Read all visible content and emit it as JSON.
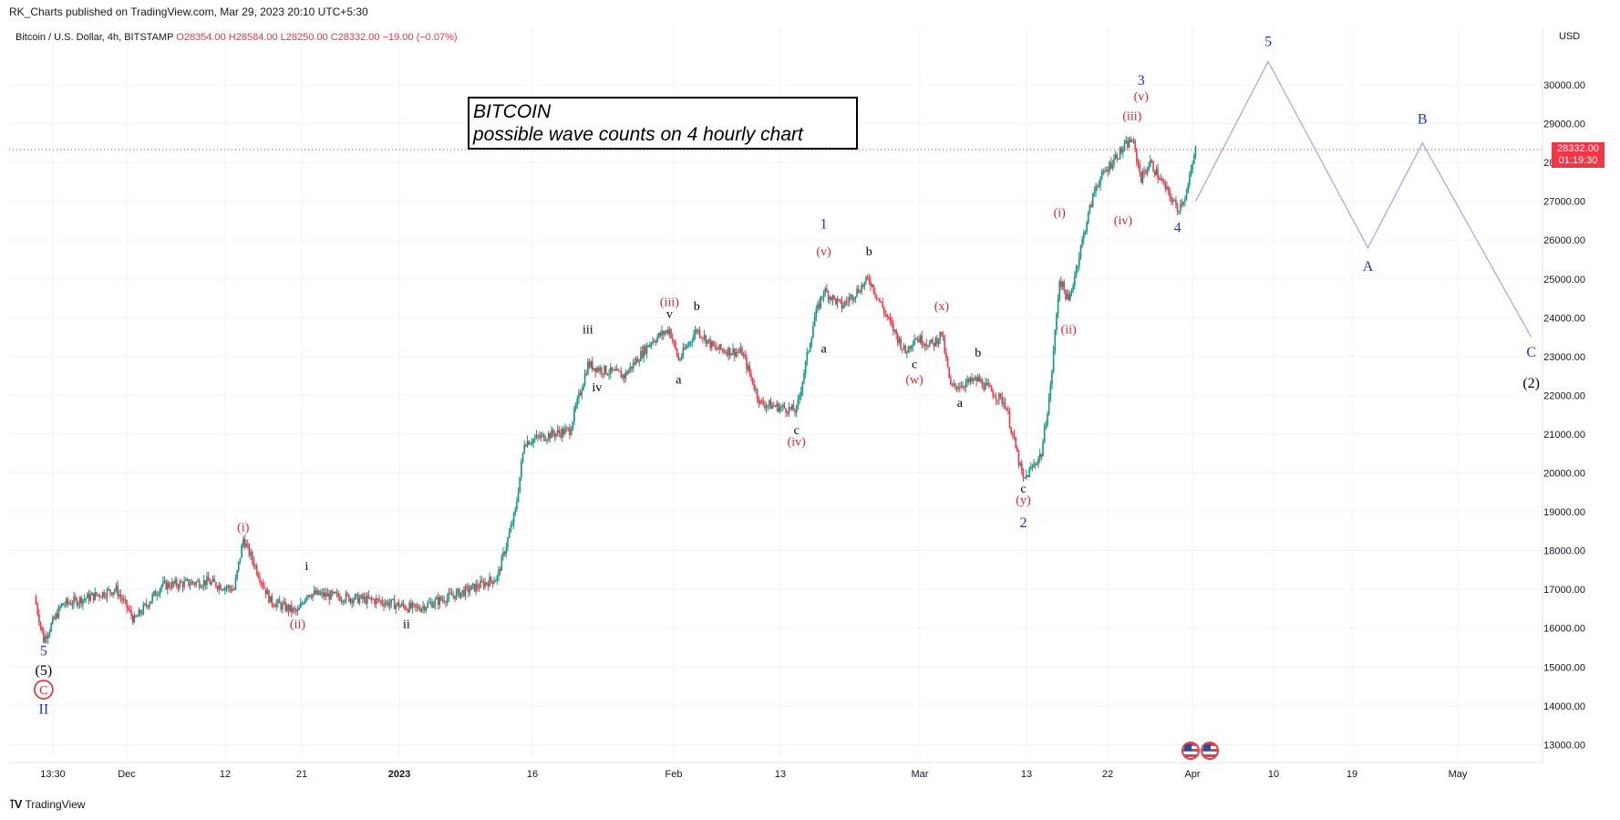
{
  "attribution": "RK_Charts published on TradingView.com, Mar 29, 2023 20:10 UTC+5:30",
  "symbol": {
    "name": "Bitcoin / U.S. Dollar, 4h, BITSTAMP",
    "ohlc": "O28354.00 H28584.00 L28250.00 C28332.00 −19.00 (−0.07%)"
  },
  "currency": "USD",
  "title_box": {
    "line1": "BITCOIN",
    "line2": "possible wave counts on 4 hourly chart"
  },
  "last_price": {
    "value": "28332.00",
    "countdown": "01:19:30"
  },
  "footer": {
    "brand": "TradingView"
  },
  "colors": {
    "up": "#089981",
    "down": "#f23645",
    "wave_blue": "#1a33cc",
    "wave_red": "#e61e28",
    "projection": "#a9a9f0",
    "grid": "#f0f3fa"
  },
  "icons": [
    "us-flag-icon",
    "us-flag-icon"
  ],
  "chart_data": {
    "type": "candlestick",
    "timeframe": "4h",
    "x_ticks": [
      "13:30",
      "Dec",
      "12",
      "21",
      "2023",
      "16",
      "Feb",
      "13",
      "Mar",
      "13",
      "22",
      "Apr",
      "10",
      "19",
      "May"
    ],
    "y_ticks": [
      13000,
      14000,
      15000,
      16000,
      17000,
      18000,
      19000,
      20000,
      21000,
      22000,
      23000,
      24000,
      25000,
      26000,
      27000,
      28000,
      29000,
      30000
    ],
    "ylim": [
      12500,
      31200
    ],
    "last_close": 28332,
    "price_path": [
      {
        "date": "Nov 21",
        "price": 16800
      },
      {
        "date": "Nov 22",
        "price": 15700
      },
      {
        "date": "Nov 24",
        "price": 16600
      },
      {
        "date": "Nov 30",
        "price": 17000
      },
      {
        "date": "Dec 2",
        "price": 16200
      },
      {
        "date": "Dec 5",
        "price": 17100
      },
      {
        "date": "Dec 10",
        "price": 17200
      },
      {
        "date": "Dec 13",
        "price": 17000
      },
      {
        "date": "Dec 14",
        "price": 18300
      },
      {
        "date": "Dec 17",
        "price": 16700
      },
      {
        "date": "Dec 20",
        "price": 16400
      },
      {
        "date": "Dec 21",
        "price": 16900
      },
      {
        "date": "Dec 29",
        "price": 16700
      },
      {
        "date": "Jan 2",
        "price": 16500
      },
      {
        "date": "Jan 8",
        "price": 17000
      },
      {
        "date": "Jan 11",
        "price": 17300
      },
      {
        "date": "Jan 13",
        "price": 19000
      },
      {
        "date": "Jan 14",
        "price": 20800
      },
      {
        "date": "Jan 17",
        "price": 21000
      },
      {
        "date": "Jan 19",
        "price": 21100
      },
      {
        "date": "Jan 21",
        "price": 22800
      },
      {
        "date": "Jan 22",
        "price": 22700
      },
      {
        "date": "Jan 25",
        "price": 22500
      },
      {
        "date": "Jan 28",
        "price": 23400
      },
      {
        "date": "Jan 30",
        "price": 23700
      },
      {
        "date": "Jan 31",
        "price": 22900
      },
      {
        "date": "Feb 2",
        "price": 23700
      },
      {
        "date": "Feb 4",
        "price": 23200
      },
      {
        "date": "Feb 7",
        "price": 23100
      },
      {
        "date": "Feb 9",
        "price": 21800
      },
      {
        "date": "Feb 13",
        "price": 21600
      },
      {
        "date": "Feb 15",
        "price": 24000
      },
      {
        "date": "Feb 16",
        "price": 24700
      },
      {
        "date": "Feb 18",
        "price": 24300
      },
      {
        "date": "Feb 21",
        "price": 25000
      },
      {
        "date": "Feb 23",
        "price": 24000
      },
      {
        "date": "Feb 25",
        "price": 23100
      },
      {
        "date": "Feb 26",
        "price": 23500
      },
      {
        "date": "Feb 28",
        "price": 23300
      },
      {
        "date": "Mar 1",
        "price": 23600
      },
      {
        "date": "Mar 2",
        "price": 22200
      },
      {
        "date": "Mar 5",
        "price": 22400
      },
      {
        "date": "Mar 8",
        "price": 21800
      },
      {
        "date": "Mar 10",
        "price": 19800
      },
      {
        "date": "Mar 12",
        "price": 20500
      },
      {
        "date": "Mar 13",
        "price": 22200
      },
      {
        "date": "Mar 14",
        "price": 25000
      },
      {
        "date": "Mar 15",
        "price": 24400
      },
      {
        "date": "Mar 17",
        "price": 26500
      },
      {
        "date": "Mar 18",
        "price": 27400
      },
      {
        "date": "Mar 20",
        "price": 28100
      },
      {
        "date": "Mar 22",
        "price": 28600
      },
      {
        "date": "Mar 23",
        "price": 27600
      },
      {
        "date": "Mar 24",
        "price": 28000
      },
      {
        "date": "Mar 27",
        "price": 26800
      },
      {
        "date": "Mar 28",
        "price": 27200
      },
      {
        "date": "Mar 29",
        "price": 28332
      }
    ],
    "projection_path": [
      {
        "date": "Mar 29",
        "price": 27000
      },
      {
        "date": "Apr 6",
        "price": 30600
      },
      {
        "date": "Apr 17",
        "price": 25800
      },
      {
        "date": "Apr 23",
        "price": 28500
      },
      {
        "date": "May 5",
        "price": 23500
      }
    ],
    "wave_labels": [
      {
        "text": "5",
        "date": "Nov 22",
        "price": 15300,
        "color": "blue"
      },
      {
        "text": "(5)",
        "date": "Nov 22",
        "price": 14800,
        "color": "black"
      },
      {
        "text": "C",
        "date": "Nov 22",
        "price": 14300,
        "color": "red",
        "circled": true
      },
      {
        "text": "II",
        "date": "Nov 22",
        "price": 13800,
        "color": "blue"
      },
      {
        "text": "(i)",
        "date": "Dec 14",
        "price": 18500,
        "color": "red"
      },
      {
        "text": "i",
        "date": "Dec 21",
        "price": 17500,
        "color": "black"
      },
      {
        "text": "(ii)",
        "date": "Dec 20",
        "price": 16000,
        "color": "red"
      },
      {
        "text": "ii",
        "date": "Jan 1",
        "price": 16000,
        "color": "black"
      },
      {
        "text": "iii",
        "date": "Jan 21",
        "price": 23600,
        "color": "black"
      },
      {
        "text": "iv",
        "date": "Jan 22",
        "price": 22100,
        "color": "black"
      },
      {
        "text": "(iii)",
        "date": "Jan 30",
        "price": 24300,
        "color": "red"
      },
      {
        "text": "v",
        "date": "Jan 30",
        "price": 24000,
        "color": "black"
      },
      {
        "text": "a",
        "date": "Jan 31",
        "price": 22300,
        "color": "black"
      },
      {
        "text": "b",
        "date": "Feb 2",
        "price": 24200,
        "color": "black"
      },
      {
        "text": "c",
        "date": "Feb 13",
        "price": 21000,
        "color": "black"
      },
      {
        "text": "(iv)",
        "date": "Feb 13",
        "price": 20700,
        "color": "red"
      },
      {
        "text": "a",
        "date": "Feb 16",
        "price": 23100,
        "color": "black"
      },
      {
        "text": "(v)",
        "date": "Feb 16",
        "price": 25600,
        "color": "red"
      },
      {
        "text": "1",
        "date": "Feb 16",
        "price": 26300,
        "color": "blue"
      },
      {
        "text": "b",
        "date": "Feb 21",
        "price": 25600,
        "color": "black"
      },
      {
        "text": "c",
        "date": "Feb 26",
        "price": 22700,
        "color": "black"
      },
      {
        "text": "(w)",
        "date": "Feb 26",
        "price": 22300,
        "color": "red"
      },
      {
        "text": "(x)",
        "date": "Mar 1",
        "price": 24200,
        "color": "red"
      },
      {
        "text": "b",
        "date": "Mar 5",
        "price": 23000,
        "color": "black"
      },
      {
        "text": "a",
        "date": "Mar 3",
        "price": 21700,
        "color": "black"
      },
      {
        "text": "c",
        "date": "Mar 10",
        "price": 19500,
        "color": "black"
      },
      {
        "text": "(y)",
        "date": "Mar 10",
        "price": 19200,
        "color": "red"
      },
      {
        "text": "2",
        "date": "Mar 10",
        "price": 18600,
        "color": "blue"
      },
      {
        "text": "(i)",
        "date": "Mar 14",
        "price": 26600,
        "color": "red"
      },
      {
        "text": "(ii)",
        "date": "Mar 15",
        "price": 23600,
        "color": "red"
      },
      {
        "text": "(iii)",
        "date": "Mar 22",
        "price": 29100,
        "color": "red"
      },
      {
        "text": "(v)",
        "date": "Mar 23",
        "price": 29600,
        "color": "red"
      },
      {
        "text": "3",
        "date": "Mar 23",
        "price": 30000,
        "color": "blue"
      },
      {
        "text": "(iv)",
        "date": "Mar 21",
        "price": 26400,
        "color": "red"
      },
      {
        "text": "4",
        "date": "Mar 27",
        "price": 26200,
        "color": "blue"
      },
      {
        "text": "5",
        "date": "Apr 6",
        "price": 31000,
        "color": "blue"
      },
      {
        "text": "A",
        "date": "Apr 17",
        "price": 25200,
        "color": "blue"
      },
      {
        "text": "B",
        "date": "Apr 23",
        "price": 29000,
        "color": "blue"
      },
      {
        "text": "C",
        "date": "May 5",
        "price": 23000,
        "color": "blue"
      },
      {
        "text": "(2)",
        "date": "May 5",
        "price": 22200,
        "color": "black"
      }
    ]
  }
}
